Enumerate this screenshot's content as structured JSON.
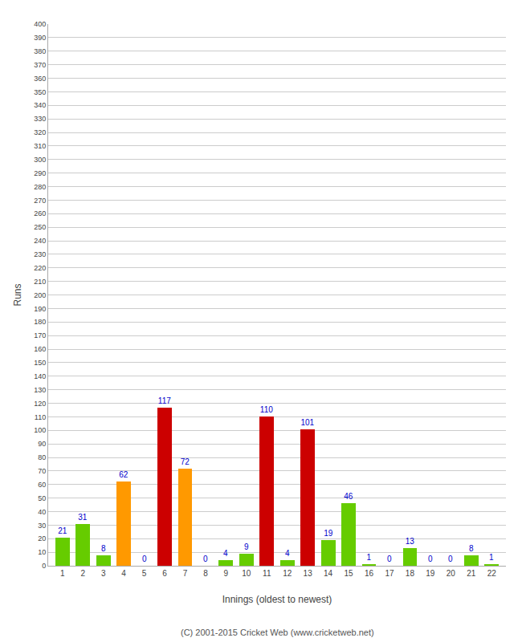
{
  "chart_data": {
    "type": "bar",
    "xlabel": "Innings (oldest to newest)",
    "ylabel": "Runs",
    "x": [
      1,
      2,
      3,
      4,
      5,
      6,
      7,
      8,
      9,
      10,
      11,
      12,
      13,
      14,
      15,
      16,
      17,
      18,
      19,
      20,
      21,
      22
    ],
    "values": [
      21,
      31,
      8,
      62,
      0,
      117,
      72,
      0,
      4,
      9,
      110,
      4,
      101,
      19,
      46,
      1,
      0,
      13,
      0,
      0,
      8,
      1
    ],
    "colors": [
      "#66cc00",
      "#66cc00",
      "#66cc00",
      "#ff9900",
      "#66cc00",
      "#cc0000",
      "#ff9900",
      "#66cc00",
      "#66cc00",
      "#66cc00",
      "#cc0000",
      "#66cc00",
      "#cc0000",
      "#66cc00",
      "#66cc00",
      "#66cc00",
      "#66cc00",
      "#66cc00",
      "#66cc00",
      "#66cc00",
      "#66cc00",
      "#66cc00"
    ],
    "xlim": [
      0.3,
      22.7
    ],
    "xticks": [
      1,
      2,
      3,
      4,
      5,
      6,
      7,
      8,
      9,
      10,
      11,
      12,
      13,
      14,
      15,
      16,
      17,
      18,
      19,
      20,
      21,
      22
    ],
    "ylim": [
      0,
      400
    ],
    "yticks": [
      0,
      10,
      20,
      30,
      40,
      50,
      60,
      70,
      80,
      90,
      100,
      110,
      120,
      130,
      140,
      150,
      160,
      170,
      180,
      190,
      200,
      210,
      220,
      230,
      240,
      250,
      260,
      270,
      280,
      290,
      300,
      310,
      320,
      330,
      340,
      350,
      360,
      370,
      380,
      390,
      400
    ],
    "grid": true,
    "data_labels": true,
    "annotations": [
      "(C) 2001-2015 Cricket Web (www.cricketweb.net)"
    ]
  }
}
